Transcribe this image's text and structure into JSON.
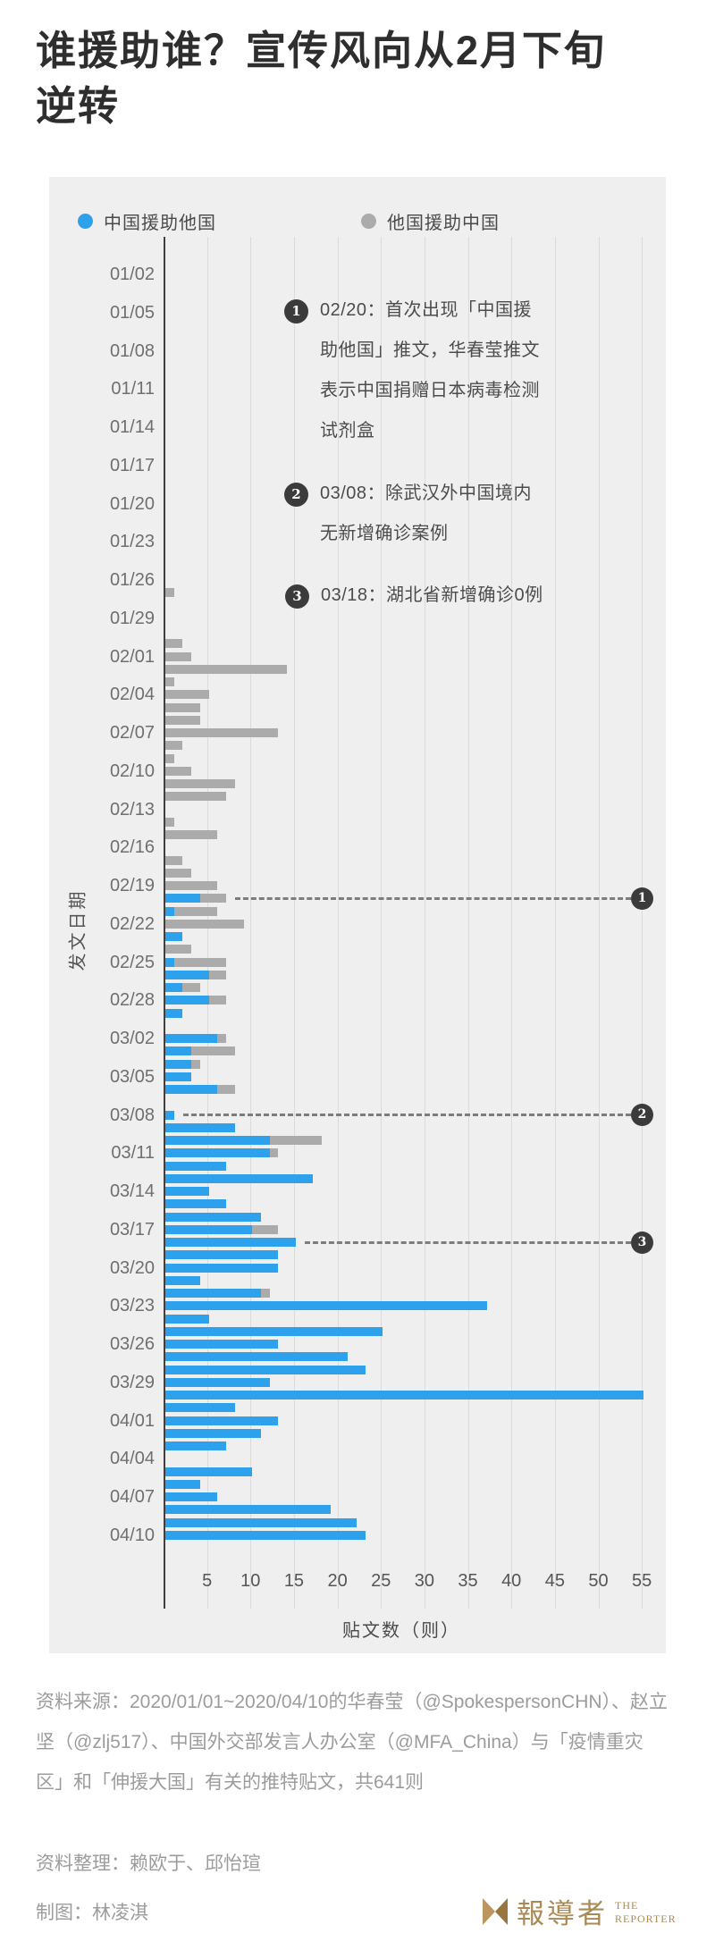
{
  "title": "谁援助谁？宣传风向从2月下旬\n逆转",
  "legend": {
    "china_label": "中国援助他国",
    "others_label": "他国援助中国"
  },
  "colors": {
    "china_blue": "#2da1ec",
    "others_gray": "#ababab",
    "panel_bg": "#f0efef",
    "marker_dark": "#3b3b3b",
    "logo_gold": "#a98a55"
  },
  "annotations": [
    {
      "number": "1",
      "marker_date": "02/20",
      "text": "02/20：首次出现「中国援\n助他国」推文，华春莹推文\n表示中国捐赠日本病毒检测\n试剂盒"
    },
    {
      "number": "2",
      "marker_date": "03/08",
      "text": "03/08：除武汉外中国境内\n无新增确诊案例"
    },
    {
      "number": "3",
      "marker_date": "03/18",
      "text": "03/18：湖北省新增确诊0例"
    }
  ],
  "chart_data": {
    "type": "bar",
    "orientation": "horizontal",
    "stacked": true,
    "title": "谁援助谁？宣传风向从2月下旬逆转",
    "xlabel": "贴文数（则）",
    "ylabel": "发文日期",
    "xlim": [
      0,
      57
    ],
    "x_ticks": [
      5,
      10,
      15,
      20,
      25,
      30,
      35,
      40,
      45,
      50,
      55
    ],
    "y_tick_labels": [
      "01/02",
      "01/05",
      "01/08",
      "01/11",
      "01/14",
      "01/17",
      "01/20",
      "01/23",
      "01/26",
      "01/29",
      "02/01",
      "02/04",
      "02/07",
      "02/10",
      "02/13",
      "02/16",
      "02/19",
      "02/22",
      "02/25",
      "02/28",
      "03/02",
      "03/05",
      "03/08",
      "03/11",
      "03/14",
      "03/17",
      "03/20",
      "03/23",
      "03/26",
      "03/29",
      "04/01",
      "04/04",
      "04/07",
      "04/10"
    ],
    "dates": [
      "01/02",
      "01/03",
      "01/04",
      "01/05",
      "01/06",
      "01/07",
      "01/08",
      "01/09",
      "01/10",
      "01/11",
      "01/12",
      "01/13",
      "01/14",
      "01/15",
      "01/16",
      "01/17",
      "01/18",
      "01/19",
      "01/20",
      "01/21",
      "01/22",
      "01/23",
      "01/24",
      "01/25",
      "01/26",
      "01/27",
      "01/28",
      "01/29",
      "01/30",
      "01/31",
      "02/01",
      "02/02",
      "02/03",
      "02/04",
      "02/05",
      "02/06",
      "02/07",
      "02/08",
      "02/09",
      "02/10",
      "02/11",
      "02/12",
      "02/13",
      "02/14",
      "02/15",
      "02/16",
      "02/17",
      "02/18",
      "02/19",
      "02/20",
      "02/21",
      "02/22",
      "02/23",
      "02/24",
      "02/25",
      "02/26",
      "02/27",
      "02/28",
      "02/29",
      "03/01",
      "03/02",
      "03/03",
      "03/04",
      "03/05",
      "03/06",
      "03/07",
      "03/08",
      "03/09",
      "03/10",
      "03/11",
      "03/12",
      "03/13",
      "03/14",
      "03/15",
      "03/16",
      "03/17",
      "03/18",
      "03/19",
      "03/20",
      "03/21",
      "03/22",
      "03/23",
      "03/24",
      "03/25",
      "03/26",
      "03/27",
      "03/28",
      "03/29",
      "03/30",
      "03/31",
      "04/01",
      "04/02",
      "04/03",
      "04/04",
      "04/05",
      "04/06",
      "04/07",
      "04/08",
      "04/09",
      "04/10"
    ],
    "series": [
      {
        "name": "中国援助他国",
        "color": "#2da1ec",
        "values": [
          0,
          0,
          0,
          0,
          0,
          0,
          0,
          0,
          0,
          0,
          0,
          0,
          0,
          0,
          0,
          0,
          0,
          0,
          0,
          0,
          0,
          0,
          0,
          0,
          0,
          0,
          0,
          0,
          0,
          0,
          0,
          0,
          0,
          0,
          0,
          0,
          0,
          0,
          0,
          0,
          0,
          0,
          0,
          0,
          0,
          0,
          0,
          0,
          0,
          4,
          1,
          0,
          2,
          0,
          1,
          5,
          2,
          5,
          2,
          0,
          6,
          3,
          3,
          3,
          6,
          0,
          1,
          8,
          12,
          12,
          7,
          17,
          5,
          7,
          11,
          10,
          15,
          13,
          13,
          4,
          11,
          37,
          5,
          25,
          13,
          21,
          23,
          12,
          55,
          8,
          13,
          11,
          7,
          0,
          10,
          4,
          6,
          19,
          22,
          23
        ]
      },
      {
        "name": "他国援助中国",
        "color": "#ababab",
        "values": [
          0,
          0,
          0,
          0,
          0,
          0,
          0,
          0,
          0,
          0,
          0,
          0,
          0,
          0,
          0,
          0,
          0,
          0,
          0,
          0,
          0,
          0,
          0,
          0,
          0,
          1,
          0,
          0,
          0,
          2,
          3,
          14,
          1,
          5,
          4,
          4,
          13,
          2,
          1,
          3,
          8,
          7,
          0,
          1,
          6,
          0,
          2,
          3,
          6,
          3,
          5,
          9,
          0,
          3,
          6,
          2,
          2,
          2,
          0,
          0,
          1,
          5,
          1,
          0,
          2,
          0,
          0,
          0,
          6,
          1,
          0,
          0,
          0,
          0,
          0,
          3,
          0,
          0,
          0,
          0,
          1,
          0,
          0,
          0,
          0,
          0,
          0,
          0,
          0,
          0,
          0,
          0,
          0,
          0,
          0,
          0,
          0,
          0,
          0,
          0
        ]
      }
    ],
    "total_posts": 641,
    "markers": [
      {
        "number": "1",
        "date": "02/20"
      },
      {
        "number": "2",
        "date": "03/08"
      },
      {
        "number": "3",
        "date": "03/18"
      }
    ]
  },
  "footer": {
    "source": "资料来源：2020/01/01~2020/04/10的华春莹（@SpokespersonCHN）、赵立坚（@zlj517）、中国外交部发言人办公室（@MFA_China）与「疫情重灾区」和「伸援大国」有关的推特贴文，共641则",
    "editors": "资料整理：赖欧于、邱怡瑄",
    "graphics": "制图：林凌淇",
    "logo": {
      "zh": "報導者",
      "en_top": "THE",
      "en_bottom": "REPORTER"
    }
  }
}
